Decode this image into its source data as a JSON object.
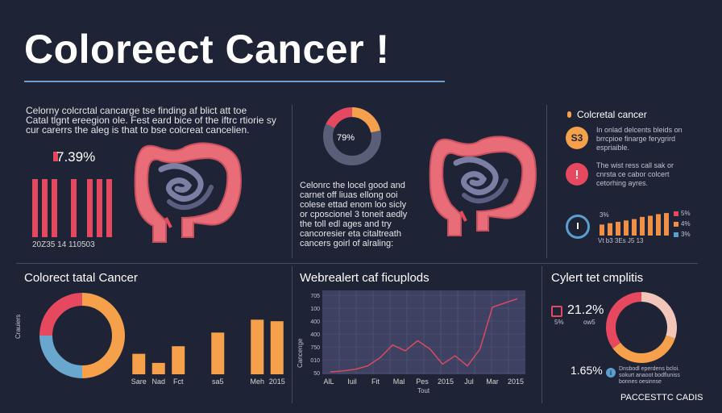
{
  "header": {
    "title": "Coloreect Cancer !"
  },
  "top_left": {
    "text_lines": [
      "Celorny colcrctal cancarge tse finding af blict att toe",
      "Catal tlgnt ereegion ole. Fest eard bice of the iftrc rtiorie sy",
      "cur carerrs the aleg is that to bse colcreat cancelien."
    ],
    "stat": "7.39%",
    "bars_label": "20Z35   14   110503",
    "bar_values": [
      100,
      100,
      100,
      100,
      100,
      100,
      100
    ],
    "colors": {
      "bar": "#e5485f",
      "stat_dot": "#e5485f"
    }
  },
  "top_middle": {
    "donut_value": "79%",
    "text_lines": [
      "Celonrc the locel good and",
      "carnet off liuas  ellong  ooi",
      "colese ettad enom loo sicly",
      "or cposcionel 3 toneit aedly",
      "the toll edl ages and try",
      "cancoresier eta citaltreath",
      "cancers goirl of alraling:"
    ]
  },
  "top_right": {
    "heading": "Colcretal cancer",
    "item1_badge": "S3",
    "item1_lines": [
      "In onlad delcents bleids on",
      "brrcpioe finarge ferygrird",
      "espriaible."
    ],
    "item2_lines": [
      "The wist ress call sak or",
      "cnrsta ce cabor colcert",
      "cetorhing ayres."
    ],
    "bar_values": [
      40,
      45,
      50,
      55,
      60,
      68,
      72,
      78,
      82
    ],
    "x_labels": "Vt  b3  3Es  J5   13",
    "legend": [
      "5%",
      "4%",
      "3%"
    ],
    "y_note": "3%",
    "colors": {
      "bar": "#f09048",
      "legend1": "#e5485f",
      "legend2": "#f09048",
      "legend3": "#5b9fcf"
    }
  },
  "bottom_left": {
    "heading": "Colorect tatal Cancer",
    "side_label": "Crauiers",
    "donut": [
      {
        "name": "orange",
        "value": 50,
        "color": "#f5a04a"
      },
      {
        "name": "blue",
        "value": 25,
        "color": "#6aa7cf"
      },
      {
        "name": "red",
        "value": 25,
        "color": "#e5485f"
      }
    ],
    "bar_categories": [
      "Sare",
      "Nad",
      "Fct",
      "",
      "sa5",
      "",
      "Meh",
      "2015"
    ],
    "bar_values": [
      27,
      15,
      37,
      0,
      55,
      0,
      72,
      70
    ],
    "ylim": [
      0,
      100
    ],
    "colors": {
      "bar": "#f5a04a"
    }
  },
  "bottom_middle": {
    "heading": "Webrealert caf ficuplods",
    "y_axis_title": "Cancenge",
    "y_ticks": [
      "705",
      "100",
      "400",
      "400",
      "750",
      "010",
      "50"
    ],
    "x_ticks": [
      "AlL",
      "Iuil",
      "Fit",
      "Mal",
      "Pes",
      "2015",
      "Jul",
      "Mar",
      "2015"
    ],
    "x_axis_title": "Tout",
    "line_values": [
      3,
      4,
      6,
      10,
      20,
      35,
      28,
      40,
      30,
      12,
      22,
      10,
      30,
      80,
      85,
      90
    ],
    "ylim": [
      0,
      100
    ],
    "colors": {
      "line": "#e5485f",
      "plot_bg": "#3d4262"
    }
  },
  "bottom_right": {
    "heading": "Cylert tet cmplitis",
    "stat1": "21.2%",
    "stat1_labels": [
      "5%",
      "ow5"
    ],
    "stat2": "1.65%",
    "legend_lines": [
      "Dnsbodl eperdens bcloi.",
      "sokurt anaoot bodfluniss",
      "bonnes oesinnse"
    ],
    "donut": [
      {
        "name": "peach",
        "value": 30,
        "color": "#f3c6ba"
      },
      {
        "name": "orange",
        "value": 35,
        "color": "#f5a04a"
      },
      {
        "name": "red",
        "value": 35,
        "color": "#e5485f"
      }
    ],
    "footer": "PACCESTTC CADIS"
  }
}
